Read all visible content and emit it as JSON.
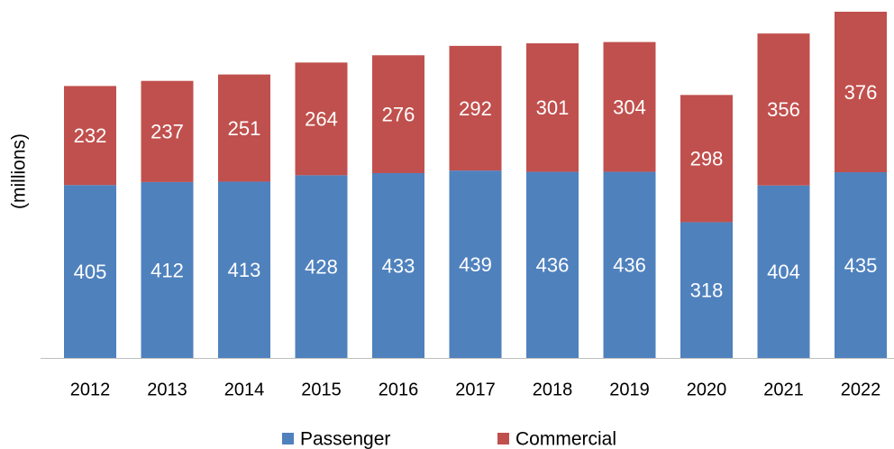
{
  "chart_data": {
    "type": "stacked-bar",
    "y_label": "(millions)",
    "categories": [
      "2012",
      "2013",
      "2014",
      "2015",
      "2016",
      "2017",
      "2018",
      "2019",
      "2020",
      "2021",
      "2022"
    ],
    "series": [
      {
        "name": "Passenger",
        "color": "#4f81bd",
        "values": [
          405,
          412,
          413,
          428,
          433,
          439,
          436,
          436,
          318,
          404,
          435
        ]
      },
      {
        "name": "Commercial",
        "color": "#c0504d",
        "values": [
          232,
          237,
          251,
          264,
          276,
          292,
          301,
          304,
          298,
          356,
          376
        ]
      }
    ],
    "legend": "bottom"
  }
}
